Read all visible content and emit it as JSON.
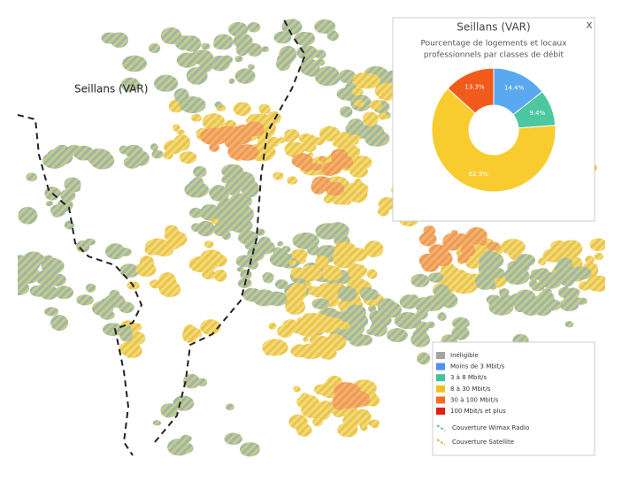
{
  "map_label": "Seillans (VAR)",
  "popup": {
    "title": "Seillans (VAR)",
    "subtitle_lines": [
      "Pourcentage de logements et locaux",
      "professionnels par classes de débit"
    ],
    "close": "X"
  },
  "chart_data": {
    "type": "donut",
    "values": [
      14.4,
      9.4,
      62.9,
      13.3
    ],
    "value_labels": [
      "14.4%",
      "9.4%",
      "62.9%",
      "13.3%"
    ],
    "colors": [
      "#5aa9f0",
      "#4cc7a0",
      "#f8cc2e",
      "#f25a1c"
    ]
  },
  "legend": {
    "classes": [
      {
        "label": "Inéligible",
        "color": "#a3a3a3"
      },
      {
        "label": "Moins de 3 Mbit/s",
        "color": "#4f8ef5"
      },
      {
        "label": "3 à 8 Mbit/s",
        "color": "#45c0a0"
      },
      {
        "label": "8 à 30 Mbit/s",
        "color": "#f0c020"
      },
      {
        "label": "30 à 100 Mbit/s",
        "color": "#f07020"
      },
      {
        "label": "100 Mbit/s et plus",
        "color": "#e02010"
      }
    ],
    "coverage": [
      {
        "label": "Couverture Wimax Radio",
        "color": "#6fb7b0"
      },
      {
        "label": "Couverture Satellite",
        "color": "#e0b83a"
      }
    ]
  }
}
